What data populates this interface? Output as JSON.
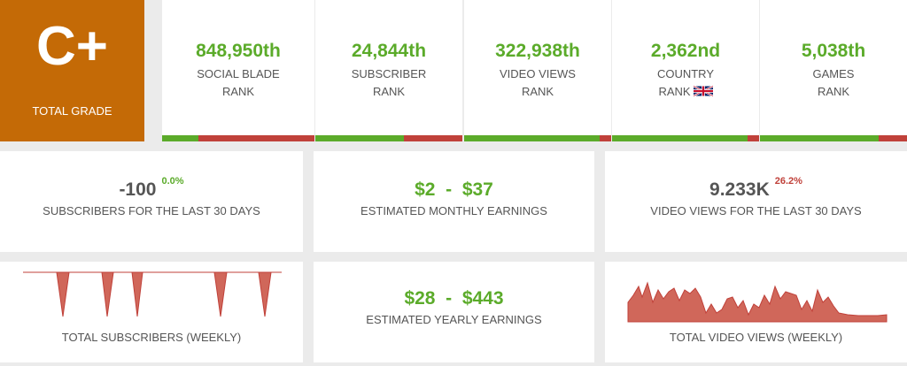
{
  "grade": {
    "letter": "C+",
    "label": "TOTAL GRADE"
  },
  "ranks": [
    {
      "value": "848,950th",
      "line1": "SOCIAL BLADE",
      "line2": "RANK",
      "good_fraction": 0.24
    },
    {
      "value": "24,844th",
      "line1": "SUBSCRIBER",
      "line2": "RANK",
      "good_fraction": 0.6
    },
    {
      "value": "322,938th",
      "line1": "VIDEO VIEWS",
      "line2": "RANK",
      "good_fraction": 0.92
    },
    {
      "value": "2,362nd",
      "line1": "COUNTRY",
      "line2": "RANK",
      "flag_icon": "uk-flag-icon",
      "good_fraction": 0.92
    },
    {
      "value": "5,038th",
      "line1": "GAMES",
      "line2": "RANK",
      "good_fraction": 0.81
    }
  ],
  "subscribers_30d": {
    "value": "-100",
    "change": "0.0%",
    "label": "SUBSCRIBERS FOR THE LAST 30 DAYS"
  },
  "monthly_earnings": {
    "low": "$2",
    "sep": "-",
    "high": "$37",
    "label": "ESTIMATED MONTHLY EARNINGS"
  },
  "views_30d": {
    "value": "9.233K",
    "change": "26.2%",
    "label": "VIDEO VIEWS FOR THE LAST 30 DAYS"
  },
  "yearly_earnings": {
    "low": "$28",
    "sep": "-",
    "high": "$443",
    "label": "ESTIMATED YEARLY EARNINGS"
  },
  "weekly_subscribers": {
    "label": "TOTAL SUBSCRIBERS (WEEKLY)"
  },
  "weekly_views": {
    "label": "TOTAL VIDEO VIEWS (WEEKLY)"
  },
  "colors": {
    "grade_bg": "#c46a06",
    "green": "#5bab2a",
    "red": "#c0413a",
    "spark_fill": "#d0675a"
  }
}
